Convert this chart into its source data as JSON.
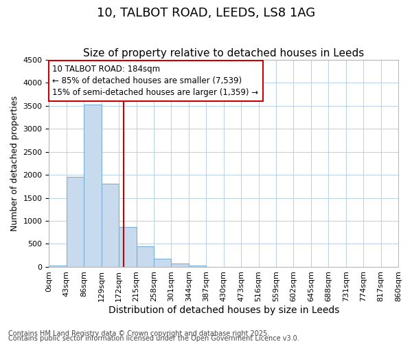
{
  "title1": "10, TALBOT ROAD, LEEDS, LS8 1AG",
  "title2": "Size of property relative to detached houses in Leeds",
  "xlabel": "Distribution of detached houses by size in Leeds",
  "ylabel": "Number of detached properties",
  "bin_labels": [
    "0sqm",
    "43sqm",
    "86sqm",
    "129sqm",
    "172sqm",
    "215sqm",
    "258sqm",
    "301sqm",
    "344sqm",
    "387sqm",
    "430sqm",
    "473sqm",
    "516sqm",
    "559sqm",
    "602sqm",
    "645sqm",
    "688sqm",
    "731sqm",
    "774sqm",
    "817sqm",
    "860sqm"
  ],
  "bar_values": [
    30,
    1950,
    3520,
    1800,
    860,
    450,
    175,
    75,
    30,
    5,
    0,
    0,
    0,
    0,
    0,
    0,
    0,
    0,
    0,
    0
  ],
  "bar_color": "#c8daee",
  "bar_edge_color": "#7ab0d8",
  "annotation_text": "10 TALBOT ROAD: 184sqm\n← 85% of detached houses are smaller (7,539)\n15% of semi-detached houses are larger (1,359) →",
  "annotation_box_color": "#ffffff",
  "annotation_box_edge_color": "#cc0000",
  "vline_color": "#cc0000",
  "ylim": [
    0,
    4500
  ],
  "yticks": [
    0,
    500,
    1000,
    1500,
    2000,
    2500,
    3000,
    3500,
    4000,
    4500
  ],
  "footer1": "Contains HM Land Registry data © Crown copyright and database right 2025.",
  "footer2": "Contains public sector information licensed under the Open Government Licence v3.0.",
  "background_color": "#ffffff",
  "plot_bg_color": "#ffffff",
  "grid_color": "#b8cfe8",
  "title_fontsize": 13,
  "subtitle_fontsize": 11,
  "tick_fontsize": 8,
  "ylabel_fontsize": 9,
  "xlabel_fontsize": 10,
  "annotation_fontsize": 8.5,
  "footer_fontsize": 7
}
